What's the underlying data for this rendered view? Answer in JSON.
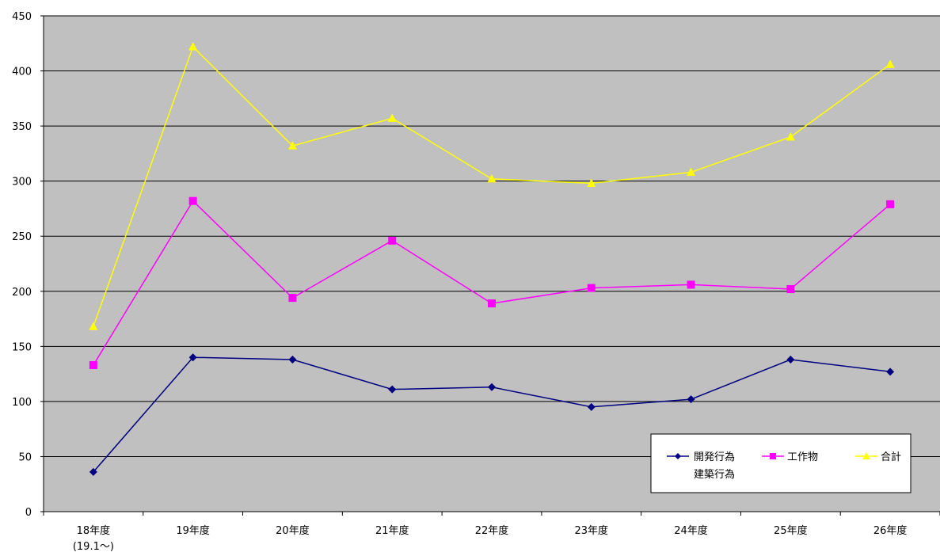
{
  "chart_data": {
    "type": "line",
    "categories": [
      [
        "18年度",
        "(19.1～)"
      ],
      [
        "19年度"
      ],
      [
        "20年度"
      ],
      [
        "21年度"
      ],
      [
        "22年度"
      ],
      [
        "23年度"
      ],
      [
        "24年度"
      ],
      [
        "25年度"
      ],
      [
        "26年度"
      ]
    ],
    "ylim": [
      0,
      450
    ],
    "yticks": [
      0,
      50,
      100,
      150,
      200,
      250,
      300,
      350,
      400,
      450
    ],
    "grid": true,
    "plot_background": "#c0c0c0",
    "legend_position": "bottom-right",
    "series": [
      {
        "name": "開発行為",
        "color": "#000080",
        "marker": "diamond",
        "values": [
          36,
          140,
          138,
          111,
          113,
          95,
          102,
          138,
          127
        ]
      },
      {
        "name": "工作物",
        "color": "#ff00ff",
        "marker": "square",
        "values": [
          133,
          282,
          194,
          246,
          189,
          203,
          206,
          202,
          279
        ]
      },
      {
        "name": "合計",
        "color": "#ffff00",
        "marker": "triangle",
        "values": [
          168,
          422,
          332,
          357,
          302,
          298,
          308,
          340,
          406
        ]
      }
    ],
    "legend_extra_label": "建築行為"
  }
}
